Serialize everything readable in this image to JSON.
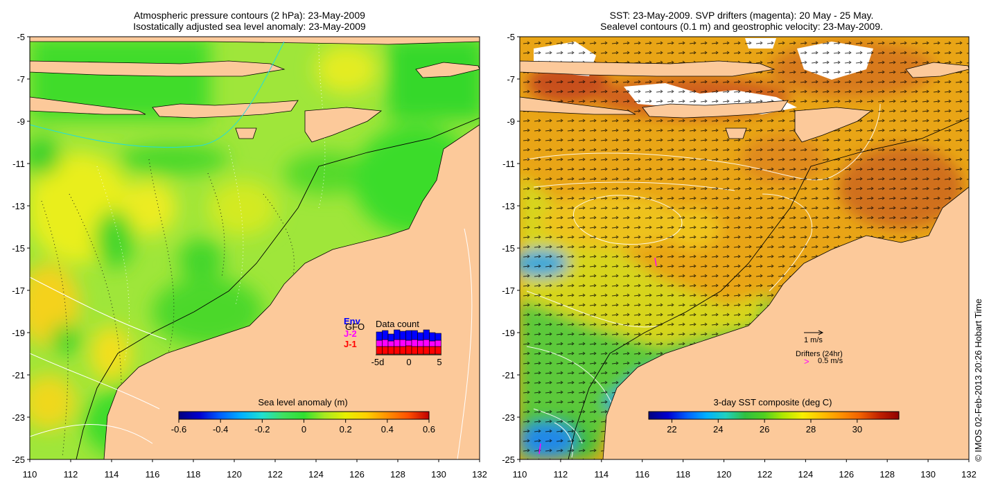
{
  "left_panel": {
    "title_line1": "Atmospheric pressure contours (2 hPa): 23-May-2009",
    "title_line2": "Isostatically adjusted sea level anomaly: 23-May-2009",
    "xaxis": {
      "range": [
        110,
        132
      ],
      "ticks": [
        "110",
        "112",
        "114",
        "116",
        "118",
        "120",
        "122",
        "124",
        "126",
        "128",
        "130",
        "132"
      ]
    },
    "yaxis": {
      "range": [
        -25,
        -5
      ],
      "ticks": [
        "-5",
        "-7",
        "-9",
        "-11",
        "-13",
        "-15",
        "-17",
        "-19",
        "-21",
        "-23",
        "-25"
      ]
    },
    "colorbar": {
      "label": "Sea level anomaly (m)",
      "range": [
        -0.6,
        0.6
      ],
      "ticks": [
        "-0.6",
        "-0.4",
        "-0.2",
        "0",
        "0.2",
        "0.4",
        "0.6"
      ],
      "colors": [
        "#00007f",
        "#0000d0",
        "#0060ff",
        "#00b0ff",
        "#20e0d0",
        "#40e060",
        "#30e030",
        "#a8e820",
        "#e8f000",
        "#ffd000",
        "#ff9000",
        "#ff5000",
        "#c00000"
      ]
    },
    "data_count": {
      "title": "Data count",
      "legend": [
        {
          "label": "Env",
          "color": "#0000ff"
        },
        {
          "label": "J-2",
          "color": "#ff00ff"
        },
        {
          "label": "J-1",
          "color": "#ff0000"
        }
      ],
      "extra_label": "GFO",
      "xticks": [
        "-5d",
        "0",
        "5"
      ]
    },
    "colors": {
      "ocean_base": "#9fe63a",
      "land": "#fcc99a"
    }
  },
  "right_panel": {
    "title_line1": "SST: 23-May-2009. SVP drifters (magenta): 20 May - 25 May.",
    "title_line2": "Sealevel contours (0.1 m) and geostrophic velocity: 23-May-2009.",
    "xaxis": {
      "range": [
        110,
        132
      ],
      "ticks": [
        "110",
        "112",
        "114",
        "116",
        "118",
        "120",
        "122",
        "124",
        "126",
        "128",
        "130",
        "132"
      ]
    },
    "yaxis": {
      "range": [
        -25,
        -5
      ],
      "ticks": [
        "-5",
        "-7",
        "-9",
        "-11",
        "-13",
        "-15",
        "-17",
        "-19",
        "-21",
        "-23",
        "-25"
      ]
    },
    "colorbar": {
      "label": "3-day SST composite (deg C)",
      "range": [
        21,
        31.8
      ],
      "ticks": [
        "22",
        "24",
        "26",
        "28",
        "30"
      ],
      "colors": [
        "#00007f",
        "#0000d0",
        "#0060ff",
        "#00b0ff",
        "#20d0c0",
        "#30c040",
        "#50d020",
        "#b0e800",
        "#f8f000",
        "#ffc000",
        "#ff9000",
        "#f06000",
        "#c02000",
        "#900000"
      ]
    },
    "legend": {
      "velocity_label": "1 m/s",
      "drifter_title": "Drifters (24hr)",
      "drifter_label": "0.5 m/s",
      "drifter_color": "#ff00ff"
    },
    "colors": {
      "land": "#fcc99a"
    }
  },
  "credit": "© IMOS 02-Feb-2013 20:26 Hobart Time"
}
